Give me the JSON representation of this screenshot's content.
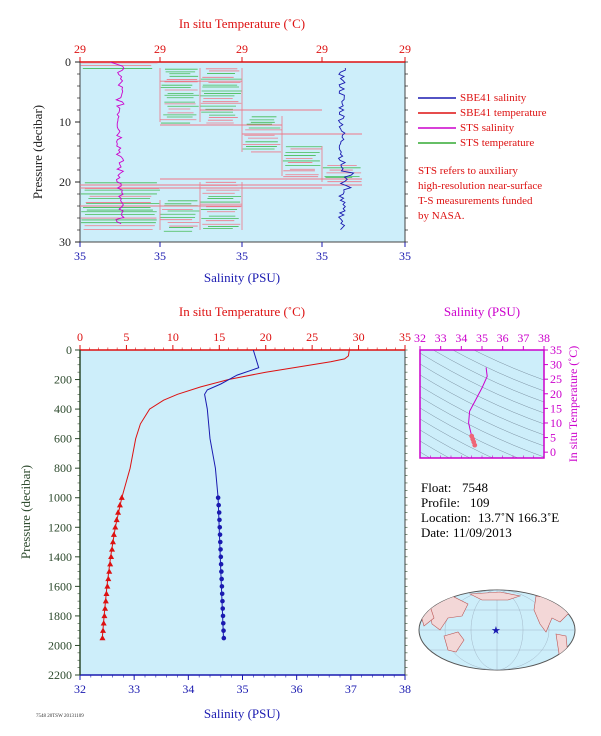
{
  "colors": {
    "panel_bg": "#cdeefa",
    "temp": "#dd1111",
    "salinity": "#1a1ab0",
    "sts_salinity": "#cc00cc",
    "sts_temp": "#33aa33",
    "pressure_axis": "#222222",
    "ts_frame": "#cc00cc"
  },
  "top_panel": {
    "top_axis_title": "In situ Temperature (˚C)",
    "bottom_axis_title": "Salinity (PSU)",
    "y_axis_title": "Pressure (decibar)",
    "top_ticks": [
      "29",
      "29",
      "29",
      "29",
      "29",
      "29"
    ],
    "bottom_ticks": [
      "35",
      "35",
      "35",
      "35",
      "35",
      "35"
    ],
    "y_ticks": [
      "0",
      "10",
      "20",
      "30"
    ]
  },
  "legend": {
    "items": [
      {
        "label": "SBE41 salinity",
        "color": "#1a1ab0"
      },
      {
        "label": "SBE41 temperature",
        "color": "#dd1111"
      },
      {
        "label": "STS salinity",
        "color": "#cc00cc"
      },
      {
        "label": "STS temperature",
        "color": "#33aa33"
      }
    ],
    "note": [
      "STS refers to auxiliary",
      "high-resolution near-surface",
      "T-S measurements funded",
      "by NASA."
    ]
  },
  "main_panel": {
    "top_axis_title": "In situ Temperature (˚C)",
    "bottom_axis_title": "Salinity (PSU)",
    "y_axis_title": "Pressure (decibar)",
    "top_ticks": [
      "0",
      "5",
      "10",
      "15",
      "20",
      "25",
      "30",
      "35"
    ],
    "bottom_ticks": [
      "32",
      "33",
      "34",
      "35",
      "36",
      "37",
      "38"
    ],
    "y_ticks": [
      "0",
      "200",
      "400",
      "600",
      "800",
      "1000",
      "1200",
      "1400",
      "1600",
      "1800",
      "2000",
      "2200"
    ]
  },
  "ts_panel": {
    "top_axis_title": "Salinity (PSU)",
    "right_axis_title": "In situ Temperature (˚C)",
    "top_ticks": [
      "32",
      "33",
      "34",
      "35",
      "36",
      "37",
      "38"
    ],
    "right_ticks": [
      "0",
      "5",
      "10",
      "15",
      "20",
      "25",
      "30",
      "35"
    ]
  },
  "info": {
    "float_label": "Float:",
    "float_value": "7548",
    "profile_label": "Profile:",
    "profile_value": "109",
    "location_label": "Location:",
    "location_value": "13.7˚N  166.3˚E",
    "date_label": "Date:",
    "date_value": "11/09/2013"
  },
  "footer_text": "7548 20TSW 20131109",
  "chart_data": [
    {
      "type": "line",
      "title": "",
      "xlabel": "Salinity (PSU)",
      "x2label": "In situ Temperature (˚C)",
      "ylabel": "Pressure (decibar)",
      "ylim": [
        0,
        30
      ],
      "y_inverted": true,
      "series": [
        {
          "name": "SBE41 salinity",
          "points": [
            [
              35.85,
              1
            ],
            [
              35.85,
              28
            ]
          ]
        },
        {
          "name": "SBE41 temperature",
          "points": [
            [
              29.1,
              1
            ],
            [
              29.4,
              28
            ]
          ]
        },
        {
          "name": "STS salinity",
          "points": [
            [
              34.7,
              0
            ],
            [
              34.7,
              20
            ],
            [
              34.75,
              27
            ]
          ]
        },
        {
          "name": "STS temperature",
          "points": [
            [
              29.0,
              0
            ],
            [
              29.4,
              27
            ]
          ]
        }
      ]
    },
    {
      "type": "line",
      "title": "",
      "xlabel": "Salinity (PSU)",
      "x2label": "In situ Temperature (˚C)",
      "ylabel": "Pressure (decibar)",
      "xlim": [
        32,
        38
      ],
      "x2lim": [
        0,
        35
      ],
      "ylim": [
        0,
        2200
      ],
      "y_inverted": true,
      "series": [
        {
          "name": "Temperature",
          "axis": "top",
          "points": [
            [
              29.0,
              0
            ],
            [
              28.9,
              40
            ],
            [
              28.5,
              60
            ],
            [
              27.0,
              80
            ],
            [
              24.0,
              110
            ],
            [
              20.0,
              150
            ],
            [
              16.0,
              200
            ],
            [
              13.0,
              250
            ],
            [
              10.5,
              300
            ],
            [
              9.0,
              340
            ],
            [
              7.5,
              400
            ],
            [
              6.5,
              500
            ],
            [
              6.0,
              600
            ],
            [
              5.4,
              800
            ],
            [
              4.5,
              1000
            ],
            [
              3.8,
              1200
            ],
            [
              3.3,
              1400
            ],
            [
              2.9,
              1600
            ],
            [
              2.6,
              1800
            ],
            [
              2.4,
              1950
            ]
          ],
          "markers": [
            [
              4.5,
              1000
            ],
            [
              4.3,
              1050
            ],
            [
              4.1,
              1100
            ],
            [
              3.95,
              1150
            ],
            [
              3.8,
              1200
            ],
            [
              3.65,
              1250
            ],
            [
              3.55,
              1300
            ],
            [
              3.45,
              1350
            ],
            [
              3.35,
              1400
            ],
            [
              3.25,
              1450
            ],
            [
              3.15,
              1500
            ],
            [
              3.05,
              1550
            ],
            [
              2.95,
              1600
            ],
            [
              2.85,
              1650
            ],
            [
              2.78,
              1700
            ],
            [
              2.7,
              1750
            ],
            [
              2.63,
              1800
            ],
            [
              2.55,
              1850
            ],
            [
              2.48,
              1900
            ],
            [
              2.42,
              1950
            ]
          ]
        },
        {
          "name": "Salinity",
          "axis": "bottom",
          "points": [
            [
              35.2,
              0
            ],
            [
              35.3,
              120
            ],
            [
              34.9,
              170
            ],
            [
              34.6,
              230
            ],
            [
              34.35,
              270
            ],
            [
              34.3,
              300
            ],
            [
              34.35,
              400
            ],
            [
              34.4,
              600
            ],
            [
              34.5,
              800
            ],
            [
              34.55,
              1000
            ],
            [
              34.6,
              1500
            ],
            [
              34.65,
              1950
            ]
          ],
          "markers": [
            [
              34.55,
              1000
            ],
            [
              34.56,
              1050
            ],
            [
              34.57,
              1100
            ],
            [
              34.575,
              1150
            ],
            [
              34.58,
              1200
            ],
            [
              34.585,
              1250
            ],
            [
              34.59,
              1300
            ],
            [
              34.595,
              1350
            ],
            [
              34.6,
              1400
            ],
            [
              34.605,
              1450
            ],
            [
              34.61,
              1500
            ],
            [
              34.615,
              1550
            ],
            [
              34.62,
              1600
            ],
            [
              34.625,
              1650
            ],
            [
              34.63,
              1700
            ],
            [
              34.635,
              1750
            ],
            [
              34.64,
              1800
            ],
            [
              34.645,
              1850
            ],
            [
              34.65,
              1900
            ],
            [
              34.655,
              1950
            ]
          ]
        }
      ]
    },
    {
      "type": "scatter",
      "title": "",
      "xlabel": "Salinity (PSU)",
      "ylabel": "In situ Temperature (˚C)",
      "xlim": [
        32,
        38
      ],
      "ylim": [
        -2,
        35
      ],
      "series": [
        {
          "name": "T-S",
          "points": [
            [
              35.2,
              29
            ],
            [
              35.25,
              26
            ],
            [
              35.0,
              22
            ],
            [
              34.7,
              18
            ],
            [
              34.4,
              14
            ],
            [
              34.35,
              10
            ],
            [
              34.45,
              7
            ],
            [
              34.5,
              5.5
            ],
            [
              34.55,
              4.5
            ],
            [
              34.6,
              3.5
            ],
            [
              34.65,
              2.4
            ]
          ]
        }
      ]
    }
  ]
}
